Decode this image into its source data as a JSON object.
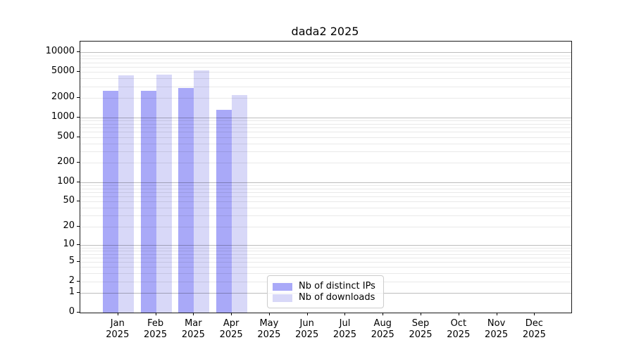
{
  "title": "dada2 2025",
  "chart_data": {
    "type": "bar",
    "title": "dada2 2025",
    "categories": [
      {
        "month": "Jan",
        "year": "2025"
      },
      {
        "month": "Feb",
        "year": "2025"
      },
      {
        "month": "Mar",
        "year": "2025"
      },
      {
        "month": "Apr",
        "year": "2025"
      },
      {
        "month": "May",
        "year": "2025"
      },
      {
        "month": "Jun",
        "year": "2025"
      },
      {
        "month": "Jul",
        "year": "2025"
      },
      {
        "month": "Aug",
        "year": "2025"
      },
      {
        "month": "Sep",
        "year": "2025"
      },
      {
        "month": "Oct",
        "year": "2025"
      },
      {
        "month": "Nov",
        "year": "2025"
      },
      {
        "month": "Dec",
        "year": "2025"
      }
    ],
    "series": [
      {
        "name": "Nb of distinct IPs",
        "color": "#a9a9f8",
        "values": [
          2600,
          2550,
          2850,
          1300,
          null,
          null,
          null,
          null,
          null,
          null,
          null,
          null
        ]
      },
      {
        "name": "Nb of downloads",
        "color": "#d8d8f8",
        "values": [
          4450,
          4600,
          5250,
          2200,
          null,
          null,
          null,
          null,
          null,
          null,
          null,
          null
        ]
      }
    ],
    "y_axis": {
      "scale": "log10(value+1)",
      "ticks": [
        0,
        1,
        2,
        5,
        10,
        20,
        50,
        100,
        200,
        500,
        1000,
        2000,
        5000,
        10000
      ],
      "major_gridlines": [
        1,
        10,
        100,
        1000,
        10000
      ],
      "minor_gridline_decades": [
        1,
        10,
        100,
        1000
      ],
      "max": 14700
    },
    "xlabel": "",
    "ylabel": "",
    "grid": true,
    "legend_position": "lower center"
  }
}
